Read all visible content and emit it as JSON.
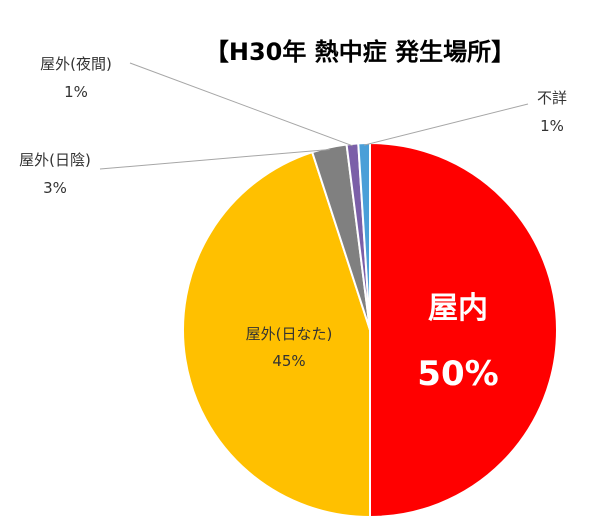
{
  "chart_data": {
    "type": "pie",
    "title": "【H30年 熱中症 発生場所】",
    "start_angle_deg": 0,
    "direction": "clockwise",
    "slices": [
      {
        "label": "屋内",
        "value": 50,
        "value_text": "50%",
        "color": "#ff0000"
      },
      {
        "label": "屋外(日なた)",
        "value": 45,
        "value_text": "45%",
        "color": "#ffc000"
      },
      {
        "label": "屋外(日陰)",
        "value": 3,
        "value_text": "3%",
        "color": "#808080"
      },
      {
        "label": "屋外(夜間)",
        "value": 1,
        "value_text": "1%",
        "color": "#7b5fa8"
      },
      {
        "label": "不詳",
        "value": 1,
        "value_text": "1%",
        "color": "#4a9fd8"
      }
    ]
  }
}
